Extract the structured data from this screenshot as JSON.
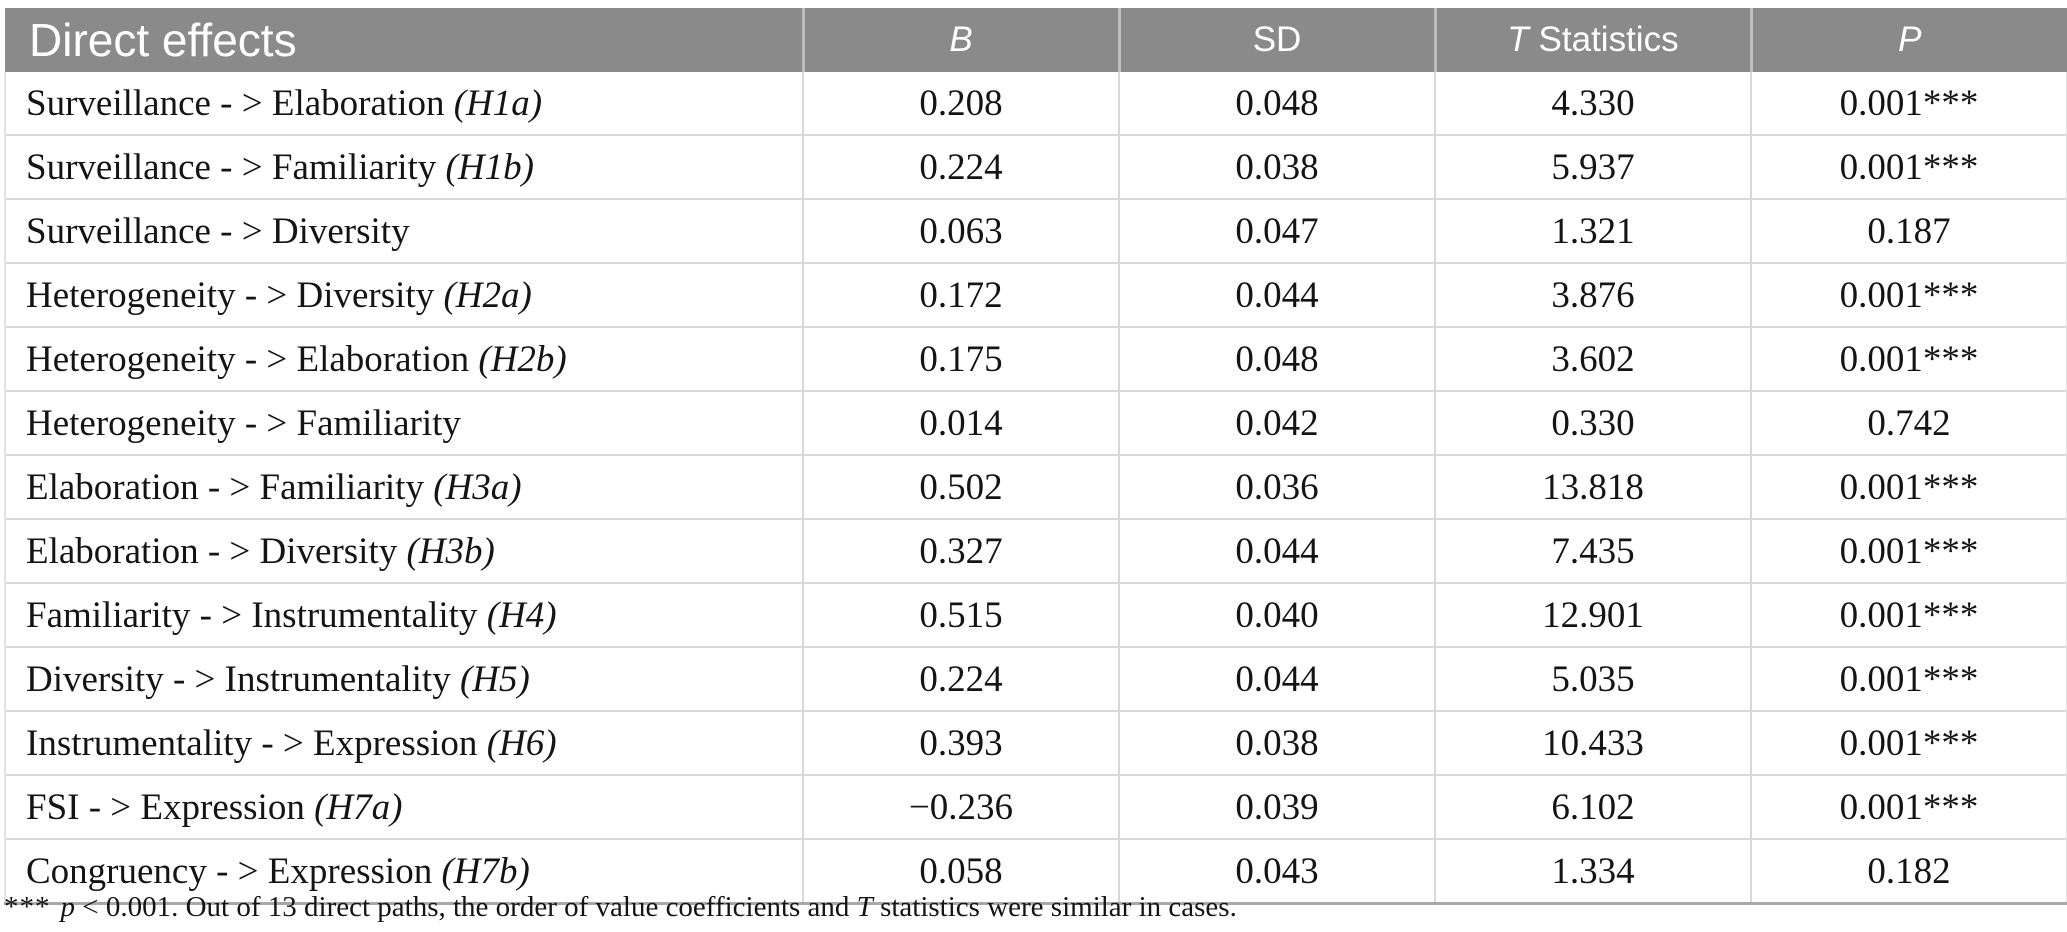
{
  "table": {
    "title": "Direct effects",
    "columns": [
      {
        "italic_part": "B",
        "normal_part": ""
      },
      {
        "italic_part": "",
        "normal_part": "SD"
      },
      {
        "italic_part": "T",
        "normal_part": " Statistics"
      },
      {
        "italic_part": "P",
        "normal_part": ""
      }
    ],
    "rows": [
      {
        "path": "Surveillance - > Elaboration",
        "hypothesis": "(H1a)",
        "B": "0.208",
        "SD": "0.048",
        "T": "4.330",
        "P": "0.001***"
      },
      {
        "path": "Surveillance - > Familiarity",
        "hypothesis": "(H1b)",
        "B": "0.224",
        "SD": "0.038",
        "T": "5.937",
        "P": "0.001***"
      },
      {
        "path": "Surveillance - > Diversity",
        "hypothesis": "",
        "B": "0.063",
        "SD": "0.047",
        "T": "1.321",
        "P": "0.187"
      },
      {
        "path": "Heterogeneity - > Diversity",
        "hypothesis": "(H2a)",
        "B": "0.172",
        "SD": "0.044",
        "T": "3.876",
        "P": "0.001***"
      },
      {
        "path": "Heterogeneity - > Elaboration",
        "hypothesis": "(H2b)",
        "B": "0.175",
        "SD": "0.048",
        "T": "3.602",
        "P": "0.001***"
      },
      {
        "path": "Heterogeneity - > Familiarity",
        "hypothesis": "",
        "B": "0.014",
        "SD": "0.042",
        "T": "0.330",
        "P": "0.742"
      },
      {
        "path": "Elaboration - > Familiarity",
        "hypothesis": "(H3a)",
        "B": "0.502",
        "SD": "0.036",
        "T": "13.818",
        "P": "0.001***"
      },
      {
        "path": "Elaboration - > Diversity",
        "hypothesis": "(H3b)",
        "B": "0.327",
        "SD": "0.044",
        "T": "7.435",
        "P": "0.001***"
      },
      {
        "path": "Familiarity - > Instrumentality",
        "hypothesis": "(H4)",
        "B": "0.515",
        "SD": "0.040",
        "T": "12.901",
        "P": "0.001***"
      },
      {
        "path": "Diversity - > Instrumentality",
        "hypothesis": "(H5)",
        "B": "0.224",
        "SD": "0.044",
        "T": "5.035",
        "P": "0.001***"
      },
      {
        "path": "Instrumentality - > Expression",
        "hypothesis": "(H6)",
        "B": "0.393",
        "SD": "0.038",
        "T": "10.433",
        "P": "0.001***"
      },
      {
        "path": "FSI - > Expression",
        "hypothesis": "(H7a)",
        "B": "−0.236",
        "SD": "0.039",
        "T": "6.102",
        "P": "0.001***"
      },
      {
        "path": "Congruency - > Expression",
        "hypothesis": "(H7b)",
        "B": "0.058",
        "SD": "0.043",
        "T": "1.334",
        "P": "0.182"
      }
    ],
    "footnote": {
      "marker": "***",
      "p_symbol": "p",
      "text_after_p": " < 0.001. Out of 13 direct paths, the order of value coefficients and ",
      "t_symbol": "T",
      "text_after_t": " statistics were similar in cases."
    }
  },
  "colors": {
    "header_bg": "#8a8a8a",
    "header_text": "#ffffff",
    "body_text": "#141414",
    "grid_line": "#d8d8d8"
  }
}
